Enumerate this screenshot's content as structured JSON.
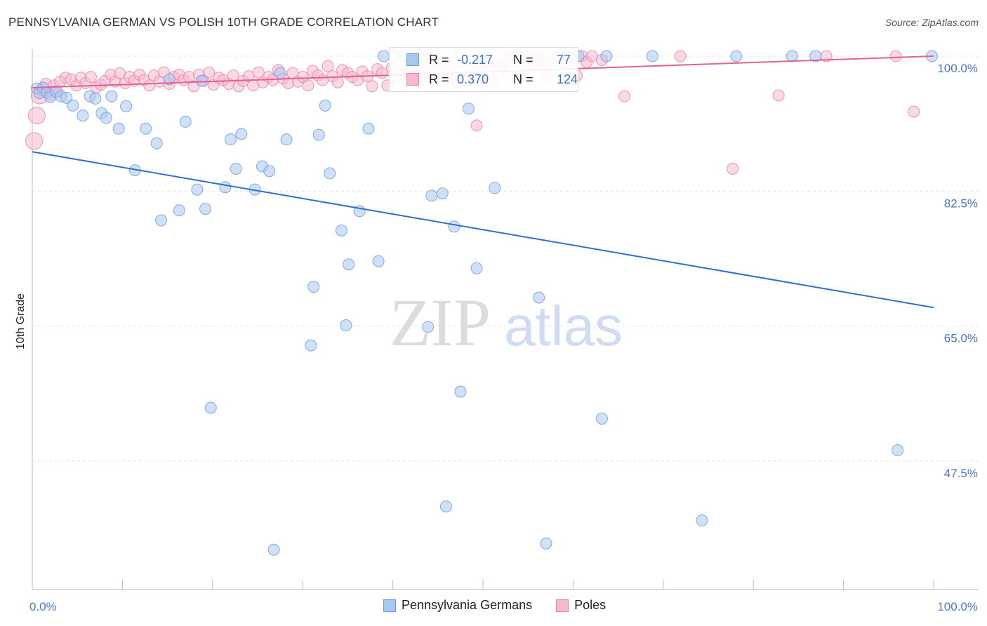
{
  "title": "PENNSYLVANIA GERMAN VS POLISH 10TH GRADE CORRELATION CHART",
  "source": "Source: ZipAtlas.com",
  "watermark": {
    "zip": "ZIP",
    "atlas": "atlas"
  },
  "stats": [
    {
      "r_label": "R =",
      "r_value": "-0.217",
      "n_label": "N =",
      "n_value": "77"
    },
    {
      "r_label": "R =",
      "r_value": "0.370",
      "n_label": "N =",
      "n_value": "124"
    }
  ],
  "chart_data": {
    "type": "scatter",
    "title": "PENNSYLVANIA GERMAN VS POLISH 10TH GRADE CORRELATION CHART",
    "xlabel": "",
    "ylabel": "10th Grade",
    "xlim": [
      0,
      100
    ],
    "ylim": [
      31,
      102
    ],
    "x_tick_labels": [
      "0.0%",
      "100.0%"
    ],
    "y_ticks": [
      {
        "value": 100,
        "label": "100.0%"
      },
      {
        "value": 82.5,
        "label": "82.5%"
      },
      {
        "value": 65,
        "label": "65.0%"
      },
      {
        "value": 47.5,
        "label": "47.5%"
      }
    ],
    "grid": true,
    "legend_position": "bottom-center",
    "series": [
      {
        "name": "Pennsylvania Germans",
        "color": "#6f9ee0",
        "fill": "#aac7f0",
        "trend": {
          "x": [
            0,
            100
          ],
          "y": [
            87.6,
            67.4
          ]
        },
        "points": [
          [
            0.5,
            95.8
          ],
          [
            0.8,
            95.2
          ],
          [
            1.2,
            95.9
          ],
          [
            1.6,
            95.3
          ],
          [
            2,
            94.7
          ],
          [
            2.6,
            95.4
          ],
          [
            3.2,
            94.8
          ],
          [
            3.8,
            94.6
          ],
          [
            4.5,
            93.6
          ],
          [
            5.6,
            92.3
          ],
          [
            6.4,
            94.8
          ],
          [
            7.0,
            94.5
          ],
          [
            7.7,
            92.6
          ],
          [
            8.2,
            92.0
          ],
          [
            8.8,
            94.8
          ],
          [
            9.6,
            90.6
          ],
          [
            10.4,
            93.5
          ],
          [
            11.4,
            85.2
          ],
          [
            12.6,
            90.6
          ],
          [
            13.8,
            88.7
          ],
          [
            14.3,
            78.7
          ],
          [
            15.2,
            97.0
          ],
          [
            16.3,
            80.0
          ],
          [
            17.0,
            91.5
          ],
          [
            18.3,
            82.7
          ],
          [
            18.8,
            96.8
          ],
          [
            19.2,
            80.2
          ],
          [
            19.8,
            54.4
          ],
          [
            21.4,
            83.0
          ],
          [
            22.0,
            89.2
          ],
          [
            22.6,
            85.4
          ],
          [
            23.2,
            89.9
          ],
          [
            24.7,
            82.7
          ],
          [
            25.5,
            85.7
          ],
          [
            26.3,
            85.1
          ],
          [
            26.8,
            36.0
          ],
          [
            27.5,
            97.8
          ],
          [
            28.2,
            89.2
          ],
          [
            30.9,
            62.5
          ],
          [
            31.2,
            70.1
          ],
          [
            31.8,
            89.8
          ],
          [
            32.5,
            93.6
          ],
          [
            33.0,
            84.8
          ],
          [
            34.3,
            77.4
          ],
          [
            34.8,
            65.1
          ],
          [
            35.1,
            73.0
          ],
          [
            36.3,
            79.9
          ],
          [
            37.3,
            90.6
          ],
          [
            38.4,
            73.4
          ],
          [
            39.0,
            100.0
          ],
          [
            40.2,
            100.0
          ],
          [
            41.2,
            100.0
          ],
          [
            41.5,
            100.0
          ],
          [
            42.3,
            100.0
          ],
          [
            43.9,
            64.9
          ],
          [
            44.3,
            81.9
          ],
          [
            45.5,
            82.2
          ],
          [
            45.9,
            41.6
          ],
          [
            46.8,
            77.9
          ],
          [
            47.5,
            56.5
          ],
          [
            48.4,
            93.2
          ],
          [
            49.3,
            72.5
          ],
          [
            51.3,
            82.9
          ],
          [
            54.0,
            100.0
          ],
          [
            56.2,
            68.7
          ],
          [
            57.0,
            36.8
          ],
          [
            59.4,
            100.0
          ],
          [
            60.6,
            100.0
          ],
          [
            63.2,
            53.0
          ],
          [
            63.7,
            100.0
          ],
          [
            68.8,
            100.0
          ],
          [
            74.3,
            39.8
          ],
          [
            78.1,
            100.0
          ],
          [
            84.3,
            100.0
          ],
          [
            86.9,
            100.0
          ],
          [
            96.0,
            48.9
          ],
          [
            99.8,
            100.0
          ]
        ]
      },
      {
        "name": "Poles",
        "color": "#e986a8",
        "fill": "#f5b8cd",
        "trend": {
          "x": [
            0,
            100
          ],
          "y": [
            95.9,
            100.0
          ]
        },
        "points": [
          [
            0.2,
            89.0
          ],
          [
            0.5,
            92.3
          ],
          [
            0.8,
            94.9
          ],
          [
            1.1,
            95.6
          ],
          [
            1.5,
            96.4
          ],
          [
            2.0,
            95.0
          ],
          [
            2.4,
            96.2
          ],
          [
            2.8,
            95.4
          ],
          [
            3.1,
            96.7
          ],
          [
            3.7,
            97.2
          ],
          [
            4.3,
            97.0
          ],
          [
            4.9,
            96.2
          ],
          [
            5.4,
            97.2
          ],
          [
            5.9,
            96.5
          ],
          [
            6.5,
            97.3
          ],
          [
            7.1,
            95.9
          ],
          [
            7.6,
            96.3
          ],
          [
            8.1,
            96.8
          ],
          [
            8.7,
            97.6
          ],
          [
            9.2,
            96.7
          ],
          [
            9.7,
            97.8
          ],
          [
            10.3,
            96.5
          ],
          [
            10.8,
            97.3
          ],
          [
            11.3,
            96.8
          ],
          [
            11.9,
            97.6
          ],
          [
            12.4,
            96.9
          ],
          [
            13.0,
            96.2
          ],
          [
            13.5,
            97.5
          ],
          [
            14.1,
            96.7
          ],
          [
            14.6,
            97.9
          ],
          [
            15.2,
            96.4
          ],
          [
            15.7,
            97.3
          ],
          [
            16.3,
            97.6
          ],
          [
            16.8,
            96.9
          ],
          [
            17.4,
            97.3
          ],
          [
            17.9,
            96.1
          ],
          [
            18.5,
            97.6
          ],
          [
            19.0,
            96.8
          ],
          [
            19.6,
            97.9
          ],
          [
            20.1,
            96.3
          ],
          [
            20.7,
            97.2
          ],
          [
            21.2,
            96.9
          ],
          [
            21.8,
            96.4
          ],
          [
            22.3,
            97.5
          ],
          [
            22.9,
            96.1
          ],
          [
            23.4,
            96.8
          ],
          [
            24.0,
            97.4
          ],
          [
            24.5,
            96.2
          ],
          [
            25.1,
            97.9
          ],
          [
            25.6,
            96.6
          ],
          [
            26.2,
            97.3
          ],
          [
            26.7,
            96.9
          ],
          [
            27.3,
            98.2
          ],
          [
            27.8,
            97.1
          ],
          [
            28.4,
            96.5
          ],
          [
            28.9,
            97.8
          ],
          [
            29.5,
            96.7
          ],
          [
            30.0,
            97.3
          ],
          [
            30.6,
            96.2
          ],
          [
            31.1,
            98.1
          ],
          [
            31.7,
            97.5
          ],
          [
            32.2,
            96.9
          ],
          [
            32.8,
            98.7
          ],
          [
            33.3,
            97.4
          ],
          [
            33.9,
            96.6
          ],
          [
            34.4,
            98.2
          ],
          [
            35.0,
            97.8
          ],
          [
            35.5,
            97.3
          ],
          [
            36.1,
            96.9
          ],
          [
            36.6,
            98.0
          ],
          [
            37.2,
            97.4
          ],
          [
            37.7,
            96.1
          ],
          [
            38.3,
            98.3
          ],
          [
            38.8,
            97.8
          ],
          [
            39.4,
            96.2
          ],
          [
            39.9,
            98.5
          ],
          [
            40.5,
            97.1
          ],
          [
            41.0,
            98.0
          ],
          [
            41.6,
            97.5
          ],
          [
            42.1,
            98.3
          ],
          [
            42.7,
            96.9
          ],
          [
            43.2,
            97.5
          ],
          [
            43.8,
            98.5
          ],
          [
            44.3,
            97.1
          ],
          [
            44.9,
            99.2
          ],
          [
            45.4,
            96.4
          ],
          [
            46.0,
            97.6
          ],
          [
            46.5,
            98.8
          ],
          [
            47.1,
            96.6
          ],
          [
            47.6,
            97.3
          ],
          [
            48.2,
            96.9
          ],
          [
            48.7,
            97.5
          ],
          [
            49.3,
            91.0
          ],
          [
            49.8,
            98.0
          ],
          [
            50.5,
            99.3
          ],
          [
            51.0,
            96.8
          ],
          [
            51.6,
            98.7
          ],
          [
            52.1,
            98.5
          ],
          [
            52.7,
            99.8
          ],
          [
            53.2,
            100.0
          ],
          [
            53.8,
            100.0
          ],
          [
            54.3,
            97.4
          ],
          [
            54.9,
            100.0
          ],
          [
            55.4,
            99.1
          ],
          [
            56.0,
            100.0
          ],
          [
            56.6,
            99.0
          ],
          [
            57.1,
            97.3
          ],
          [
            57.7,
            99.3
          ],
          [
            58.2,
            100.0
          ],
          [
            58.8,
            99.6
          ],
          [
            59.3,
            96.2
          ],
          [
            59.9,
            100.0
          ],
          [
            60.4,
            97.5
          ],
          [
            61.0,
            100.0
          ],
          [
            61.5,
            99.2
          ],
          [
            62.1,
            100.0
          ],
          [
            63.2,
            99.5
          ],
          [
            65.7,
            94.8
          ],
          [
            71.9,
            100.0
          ],
          [
            77.7,
            85.4
          ],
          [
            82.8,
            94.9
          ],
          [
            88.1,
            100.0
          ],
          [
            95.8,
            100.0
          ],
          [
            97.8,
            92.8
          ]
        ]
      }
    ]
  }
}
